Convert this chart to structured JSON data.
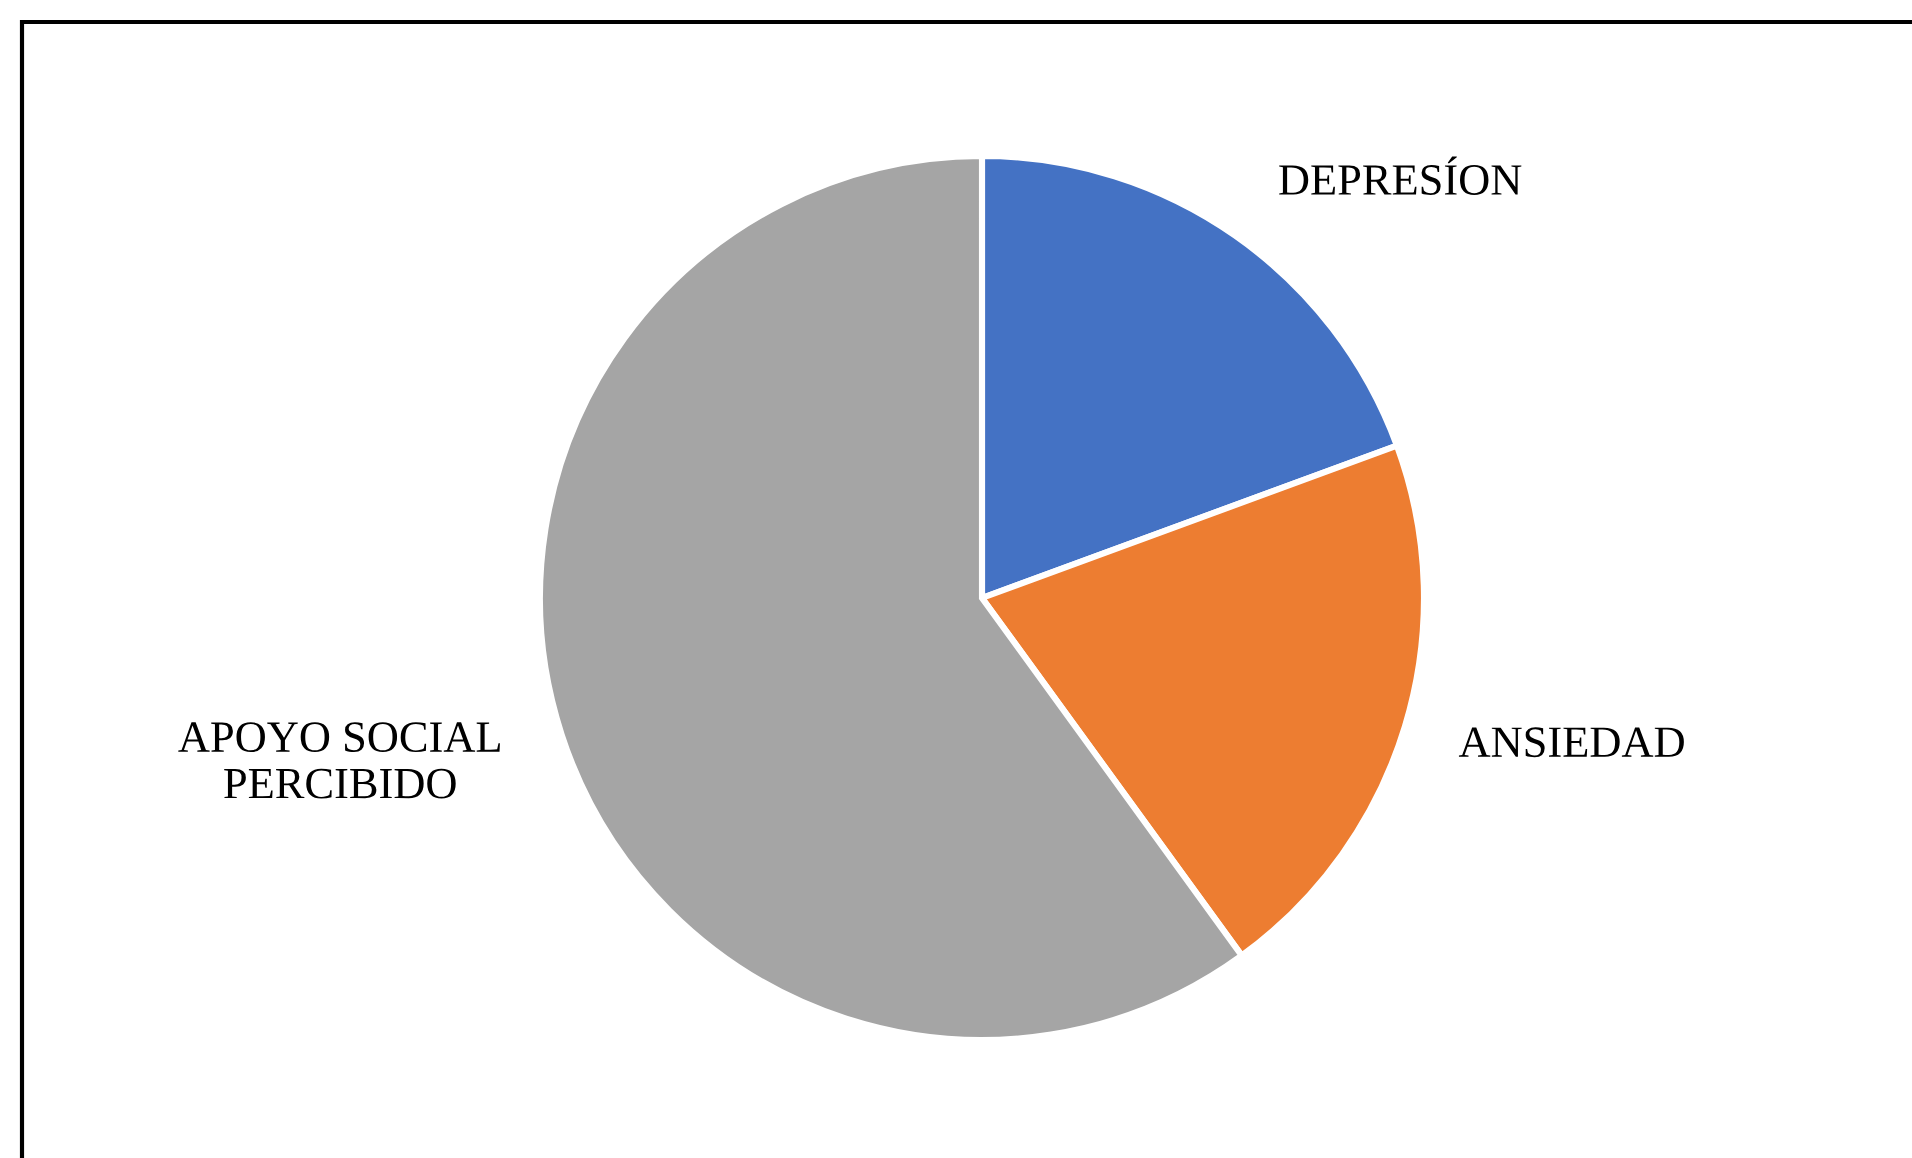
{
  "chart_data": {
    "type": "pie",
    "categories": [
      "DEPRESÍON",
      "ANSIEDAD",
      "APOYO SOCIAL\nPERCIBIDO"
    ],
    "values": [
      19.4,
      20.6,
      60.0
    ],
    "colors": [
      "#4472c4",
      "#ed7d31",
      "#a5a5a5"
    ]
  }
}
